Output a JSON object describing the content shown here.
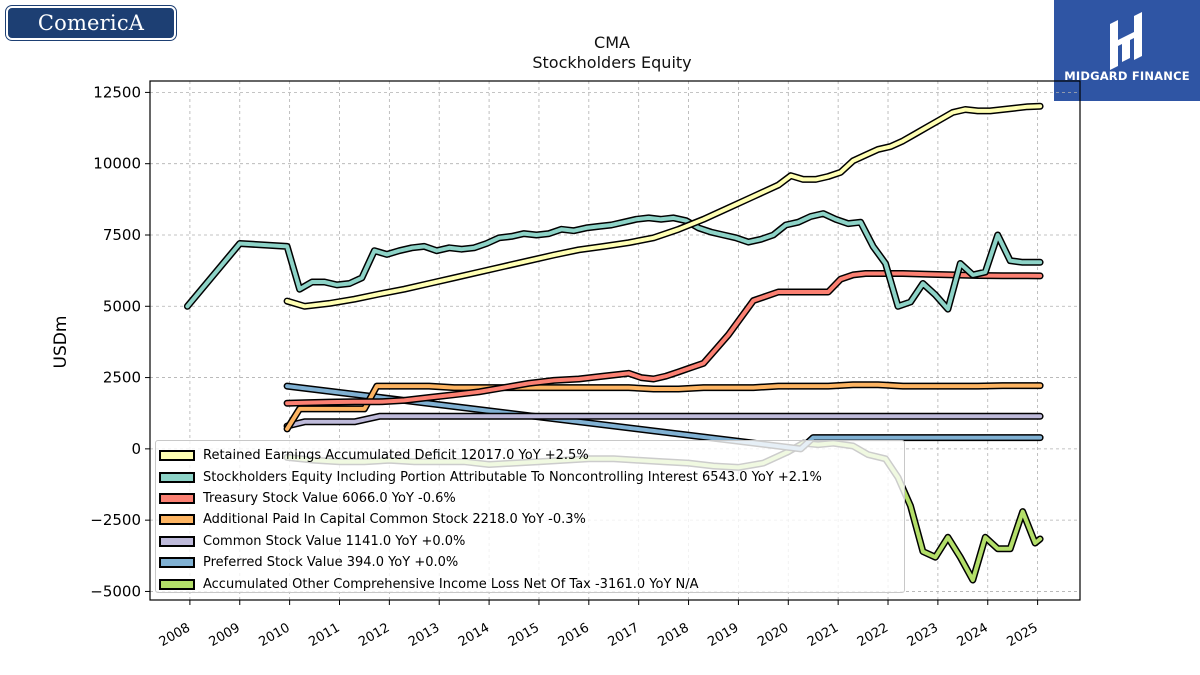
{
  "brand": {
    "left_logo_text": "ComericA",
    "right_logo_text": "MIDGARD FINANCE"
  },
  "chart_data": {
    "type": "line",
    "title": "CMA",
    "subtitle": "Stockholders  Equity",
    "ylabel": "USDm",
    "xlabel": "",
    "xlim": [
      2007.2,
      2025.85
    ],
    "ylim": [
      -5300,
      12900
    ],
    "x_ticks": [
      2008,
      2009,
      2010,
      2011,
      2012,
      2013,
      2014,
      2015,
      2016,
      2017,
      2018,
      2019,
      2020,
      2021,
      2022,
      2023,
      2024,
      2025
    ],
    "x_tick_labels": [
      "2008",
      "2009",
      "2010",
      "2011",
      "2012",
      "2013",
      "2014",
      "2015",
      "2016",
      "2017",
      "2018",
      "2019",
      "2020",
      "2021",
      "2022",
      "2023",
      "2024",
      "2025"
    ],
    "y_ticks": [
      -5000,
      -2500,
      0,
      2500,
      5000,
      7500,
      10000,
      12500
    ],
    "y_tick_labels": [
      "−5000",
      "−2500",
      "0",
      "2500",
      "5000",
      "7500",
      "10000",
      "12500"
    ],
    "grid": true,
    "legend_position": "lower-left",
    "series": [
      {
        "name": "Retained Earnings Accumulated Deficit",
        "legend_label": "Retained Earnings Accumulated Deficit  12017.0 YoY +2.5%",
        "color": "#ffffb3",
        "x": [
          2009.95,
          2010.3,
          2010.8,
          2011.3,
          2011.8,
          2012.3,
          2012.8,
          2013.3,
          2013.8,
          2014.3,
          2014.8,
          2015.3,
          2015.8,
          2016.3,
          2016.8,
          2017.3,
          2017.8,
          2018.3,
          2018.8,
          2019.3,
          2019.8,
          2020.05,
          2020.3,
          2020.55,
          2020.8,
          2021.05,
          2021.3,
          2021.55,
          2021.8,
          2022.05,
          2022.3,
          2022.55,
          2022.8,
          2023.05,
          2023.3,
          2023.55,
          2023.8,
          2024.05,
          2024.3,
          2024.55,
          2024.8,
          2025.05
        ],
        "y": [
          5180,
          5000,
          5100,
          5250,
          5430,
          5600,
          5800,
          6000,
          6200,
          6400,
          6600,
          6800,
          6980,
          7100,
          7230,
          7400,
          7700,
          8050,
          8450,
          8850,
          9250,
          9580,
          9450,
          9450,
          9550,
          9700,
          10100,
          10300,
          10500,
          10600,
          10800,
          11050,
          11300,
          11550,
          11800,
          11900,
          11850,
          11850,
          11900,
          11950,
          12000,
          12017
        ]
      },
      {
        "name": "Stockholders Equity Including Portion Attributable To Noncontrolling Interest",
        "legend_label": "Stockholders Equity Including Portion Attributable To Noncontrolling Interest  6543.0 YoY +2.1%",
        "color": "#8dd3c7",
        "x": [
          2007.95,
          2009.0,
          2009.95,
          2010.2,
          2010.45,
          2010.7,
          2010.95,
          2011.2,
          2011.45,
          2011.7,
          2011.95,
          2012.2,
          2012.45,
          2012.7,
          2012.95,
          2013.2,
          2013.45,
          2013.7,
          2013.95,
          2014.2,
          2014.45,
          2014.7,
          2014.95,
          2015.2,
          2015.45,
          2015.7,
          2015.95,
          2016.2,
          2016.45,
          2016.7,
          2016.95,
          2017.2,
          2017.45,
          2017.7,
          2017.95,
          2018.2,
          2018.45,
          2018.7,
          2018.95,
          2019.2,
          2019.45,
          2019.7,
          2019.95,
          2020.2,
          2020.45,
          2020.7,
          2020.95,
          2021.2,
          2021.45,
          2021.7,
          2021.95,
          2022.2,
          2022.45,
          2022.7,
          2022.95,
          2023.2,
          2023.45,
          2023.7,
          2023.95,
          2024.2,
          2024.45,
          2024.7,
          2024.95,
          2025.05
        ],
        "y": [
          5000,
          7200,
          7100,
          5600,
          5850,
          5850,
          5750,
          5800,
          6000,
          6950,
          6820,
          6950,
          7050,
          7100,
          6950,
          7050,
          7000,
          7050,
          7200,
          7400,
          7450,
          7550,
          7500,
          7550,
          7700,
          7650,
          7750,
          7800,
          7850,
          7950,
          8050,
          8100,
          8050,
          8100,
          8000,
          7750,
          7600,
          7500,
          7400,
          7250,
          7350,
          7500,
          7850,
          7950,
          8150,
          8250,
          8050,
          7900,
          7950,
          7100,
          6500,
          5000,
          5150,
          5800,
          5400,
          4900,
          6500,
          6100,
          6200,
          7500,
          6600,
          6543,
          6543,
          6543
        ]
      },
      {
        "name": "Treasury Stock Value",
        "legend_label": "Treasury Stock Value  6066.0 YoY -0.6%",
        "color": "#fb8072",
        "x": [
          2009.95,
          2010.3,
          2010.8,
          2011.3,
          2011.8,
          2012.3,
          2012.8,
          2013.3,
          2013.8,
          2014.3,
          2014.8,
          2015.3,
          2015.8,
          2016.3,
          2016.8,
          2017.05,
          2017.3,
          2017.55,
          2017.8,
          2018.05,
          2018.3,
          2018.55,
          2018.8,
          2019.05,
          2019.3,
          2019.55,
          2019.8,
          2020.05,
          2020.3,
          2020.55,
          2020.8,
          2021.05,
          2021.3,
          2021.55,
          2021.8,
          2022.05,
          2022.3,
          2022.8,
          2023.3,
          2023.8,
          2024.3,
          2024.8,
          2025.05
        ],
        "y": [
          1600,
          1620,
          1640,
          1650,
          1650,
          1700,
          1800,
          1900,
          2000,
          2150,
          2300,
          2400,
          2450,
          2550,
          2650,
          2500,
          2450,
          2550,
          2700,
          2850,
          3000,
          3500,
          4000,
          4600,
          5200,
          5350,
          5500,
          5500,
          5500,
          5500,
          5500,
          5950,
          6100,
          6150,
          6150,
          6150,
          6150,
          6120,
          6100,
          6080,
          6070,
          6070,
          6066
        ]
      },
      {
        "name": "Additional Paid In Capital Common Stock",
        "legend_label": "Additional Paid In Capital Common Stock  2218.0 YoY -0.3%",
        "color": "#fdb462",
        "x": [
          2009.95,
          2010.2,
          2010.5,
          2011.0,
          2011.5,
          2011.75,
          2012.3,
          2012.8,
          2013.3,
          2013.8,
          2014.3,
          2014.8,
          2015.3,
          2015.8,
          2016.3,
          2016.8,
          2017.3,
          2017.8,
          2018.3,
          2018.8,
          2019.3,
          2019.8,
          2020.3,
          2020.8,
          2021.3,
          2021.8,
          2022.3,
          2022.8,
          2023.3,
          2023.8,
          2024.3,
          2024.8,
          2025.05
        ],
        "y": [
          700,
          1400,
          1400,
          1400,
          1400,
          2200,
          2200,
          2200,
          2150,
          2150,
          2150,
          2150,
          2150,
          2150,
          2150,
          2150,
          2100,
          2100,
          2150,
          2150,
          2150,
          2200,
          2200,
          2200,
          2250,
          2250,
          2200,
          2200,
          2200,
          2200,
          2220,
          2220,
          2218
        ]
      },
      {
        "name": "Common Stock Value",
        "legend_label": "Common Stock Value  1141.0 YoY +0.0%",
        "color": "#bebada",
        "x": [
          2009.95,
          2010.3,
          2010.8,
          2011.3,
          2011.8,
          2012.3,
          2013.3,
          2014.3,
          2015.3,
          2016.3,
          2017.3,
          2018.3,
          2019.3,
          2020.3,
          2021.3,
          2022.3,
          2023.3,
          2024.3,
          2025.05
        ],
        "y": [
          800,
          950,
          950,
          950,
          1141,
          1141,
          1141,
          1141,
          1141,
          1141,
          1141,
          1141,
          1141,
          1141,
          1141,
          1141,
          1141,
          1141,
          1141
        ]
      },
      {
        "name": "Preferred Stock Value",
        "legend_label": "Preferred Stock Value  394.0 YoY +0.0%",
        "color": "#80b1d3",
        "x": [
          2009.95,
          2020.25,
          2020.5,
          2021.0,
          2022.0,
          2023.0,
          2024.0,
          2025.05
        ],
        "y": [
          2200,
          0,
          394,
          394,
          394,
          394,
          394,
          394
        ]
      },
      {
        "name": "Accumulated Other Comprehensive Income Loss Net Of Tax",
        "legend_label": "Accumulated Other Comprehensive Income Loss Net Of Tax  -3161.0 YoY N/A",
        "color": "#b3de69",
        "x": [
          2009.95,
          2010.5,
          2011.0,
          2011.5,
          2012.0,
          2012.5,
          2013.0,
          2013.5,
          2014.0,
          2014.5,
          2015.0,
          2015.5,
          2016.0,
          2016.5,
          2017.0,
          2017.5,
          2018.0,
          2018.5,
          2019.0,
          2019.5,
          2020.0,
          2020.3,
          2020.6,
          2020.9,
          2021.3,
          2021.6,
          2021.95,
          2022.2,
          2022.45,
          2022.7,
          2022.95,
          2023.2,
          2023.45,
          2023.7,
          2023.95,
          2024.2,
          2024.45,
          2024.7,
          2024.95,
          2025.05
        ],
        "y": [
          -300,
          -400,
          -450,
          -450,
          -400,
          -450,
          -450,
          -450,
          -550,
          -500,
          -450,
          -400,
          -350,
          -350,
          -400,
          -450,
          -500,
          -600,
          -650,
          -500,
          -100,
          200,
          150,
          200,
          100,
          -200,
          -350,
          -1000,
          -2000,
          -3600,
          -3800,
          -3100,
          -3800,
          -4600,
          -3100,
          -3500,
          -3500,
          -2200,
          -3300,
          -3161
        ]
      }
    ]
  }
}
